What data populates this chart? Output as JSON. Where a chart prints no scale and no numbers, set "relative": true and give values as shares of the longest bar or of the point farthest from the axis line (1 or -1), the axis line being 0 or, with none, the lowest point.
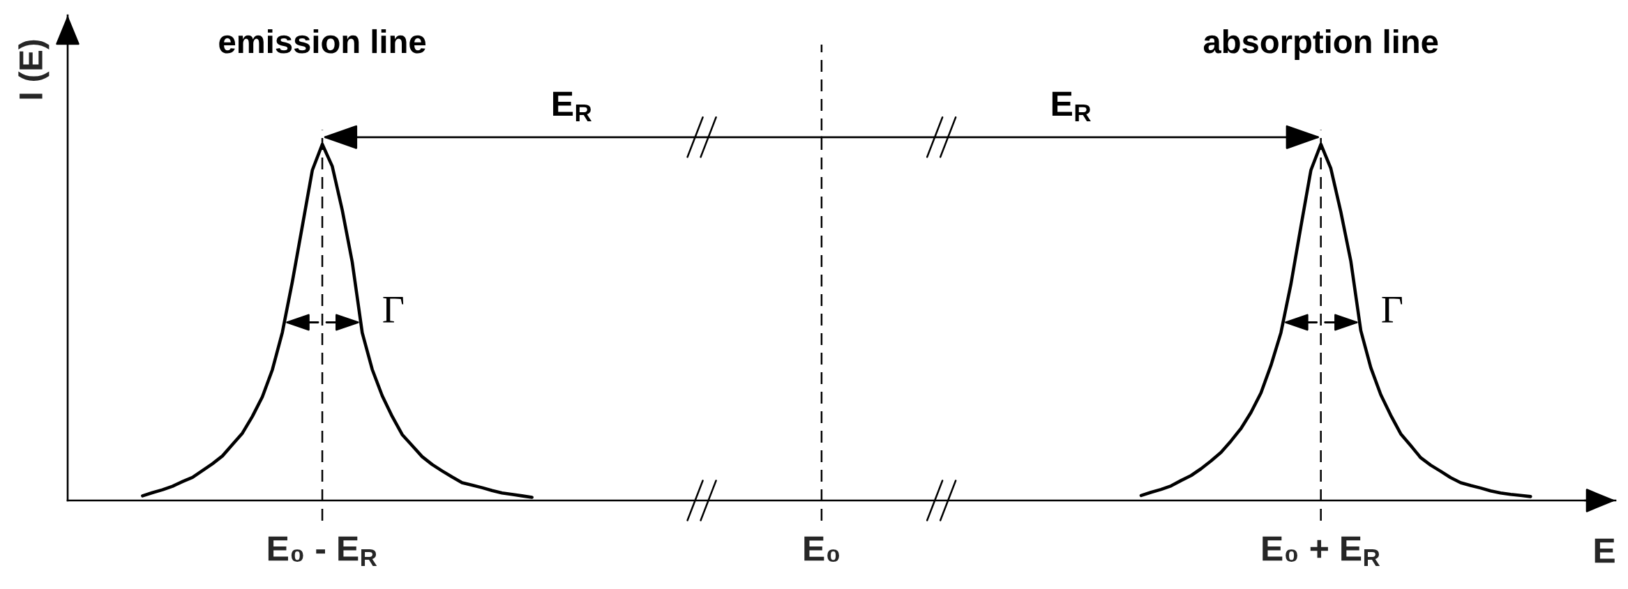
{
  "chart_data": {
    "type": "line",
    "relative": true,
    "xlabel": "E",
    "ylabel": "I (E)",
    "grid": "x",
    "categories": [
      null,
      null,
      null,
      null,
      null,
      null,
      null,
      null,
      null,
      null,
      null,
      null,
      null,
      null,
      null,
      null,
      null,
      null,
      null,
      null,
      null,
      null,
      null,
      null,
      null,
      "E₀ - E$_{R}$",
      null,
      null,
      null,
      null,
      null,
      null,
      null,
      null,
      null,
      null,
      null,
      null,
      null,
      null,
      null,
      null,
      null,
      null,
      null,
      null,
      null,
      null,
      null,
      null,
      null,
      null,
      null,
      null,
      null,
      null,
      null,
      null,
      null,
      null,
      null,
      null,
      null,
      null,
      null,
      null,
      null,
      null,
      null,
      null,
      null,
      null,
      null,
      null,
      null,
      "E₀",
      null,
      null,
      null,
      null,
      null,
      null,
      null,
      null,
      null,
      null,
      null,
      null,
      null,
      null,
      null,
      null,
      null,
      null,
      null,
      null,
      null,
      null,
      null,
      null,
      null,
      null,
      null,
      null,
      null,
      null,
      null,
      null,
      null,
      null,
      null,
      null,
      null,
      null,
      null,
      null,
      null,
      null,
      null,
      null,
      null,
      null,
      null,
      null,
      null,
      "E₀ + E$_{R}$",
      null,
      null,
      null,
      null,
      null,
      null,
      null,
      null,
      null,
      null,
      null,
      null,
      null,
      null,
      null,
      null,
      null,
      null,
      null,
      null,
      null,
      null,
      null,
      null,
      null,
      null,
      null,
      null,
      null
    ],
    "line_style": "solid",
    "series": [
      {
        "color": "#000000",
        "values": [
          null,
          null,
          null,
          null,
          null,
          null,
          null,
          0.013,
          0.022,
          0.03,
          0.04,
          0.053,
          0.065,
          0.084,
          0.103,
          0.125,
          0.157,
          0.189,
          0.236,
          0.291,
          0.367,
          0.472,
          0.614,
          0.77,
          0.927,
          1.0,
          0.938,
          0.815,
          0.669,
          0.471,
          0.368,
          0.294,
          0.236,
          0.185,
          0.154,
          0.123,
          0.101,
          0.083,
          0.066,
          0.05,
          0.043,
          0.036,
          0.028,
          0.021,
          0.017,
          0.013,
          0.009,
          null,
          null,
          null,
          null,
          null,
          null,
          null,
          null,
          null,
          null,
          null,
          null,
          null,
          null,
          null,
          null,
          null,
          null,
          null,
          null,
          null,
          null,
          null,
          null,
          null,
          null,
          null,
          null,
          null,
          null,
          null,
          null,
          null,
          null,
          null,
          null,
          null,
          null,
          null,
          null,
          null,
          null,
          null,
          null,
          null,
          null,
          null,
          null,
          null,
          null,
          null,
          null,
          null,
          null,
          null,
          null,
          null,
          null,
          null,
          null,
          null,
          null,
          null,
          null,
          null,
          null,
          null,
          null,
          null,
          null,
          null,
          null,
          null,
          null,
          null,
          null,
          null,
          null,
          null,
          null,
          null,
          null,
          null,
          null,
          null,
          null,
          null,
          null,
          null,
          null,
          null,
          null,
          null,
          null,
          null,
          null,
          null,
          null,
          null,
          null,
          null,
          null,
          null,
          null,
          null,
          null,
          null,
          null
        ]
      },
      {
        "color": "#000000",
        "values": [
          null,
          null,
          null,
          null,
          null,
          null,
          null,
          null,
          null,
          null,
          null,
          null,
          null,
          null,
          null,
          null,
          null,
          null,
          null,
          null,
          null,
          null,
          null,
          null,
          null,
          null,
          null,
          null,
          null,
          null,
          null,
          null,
          null,
          null,
          null,
          null,
          null,
          null,
          null,
          null,
          null,
          null,
          null,
          null,
          null,
          null,
          null,
          null,
          null,
          null,
          null,
          null,
          null,
          null,
          null,
          null,
          null,
          null,
          null,
          null,
          null,
          null,
          null,
          null,
          null,
          null,
          null,
          null,
          null,
          null,
          null,
          null,
          null,
          null,
          null,
          null,
          null,
          null,
          null,
          null,
          null,
          null,
          null,
          null,
          null,
          null,
          null,
          null,
          null,
          null,
          null,
          null,
          null,
          null,
          null,
          null,
          null,
          null,
          null,
          null,
          null,
          null,
          null,
          null,
          null,
          null,
          null,
          0.014,
          0.023,
          0.031,
          0.041,
          0.056,
          0.07,
          0.089,
          0.111,
          0.135,
          0.167,
          0.202,
          0.247,
          0.302,
          0.379,
          0.471,
          0.607,
          0.769,
          0.927,
          1.0,
          0.932,
          0.81,
          0.672,
          0.477,
          0.373,
          0.297,
          0.239,
          0.187,
          0.154,
          0.12,
          0.099,
          0.082,
          0.064,
          0.05,
          0.042,
          0.035,
          0.027,
          0.021,
          0.017,
          0.014,
          0.011,
          null,
          null,
          null,
          null,
          null,
          null,
          null,
          null
        ]
      }
    ],
    "annotations": [
      "emission line",
      "absorption line",
      "E$_{R}$",
      "E$_{R}$",
      "Γ",
      "Γ"
    ]
  }
}
